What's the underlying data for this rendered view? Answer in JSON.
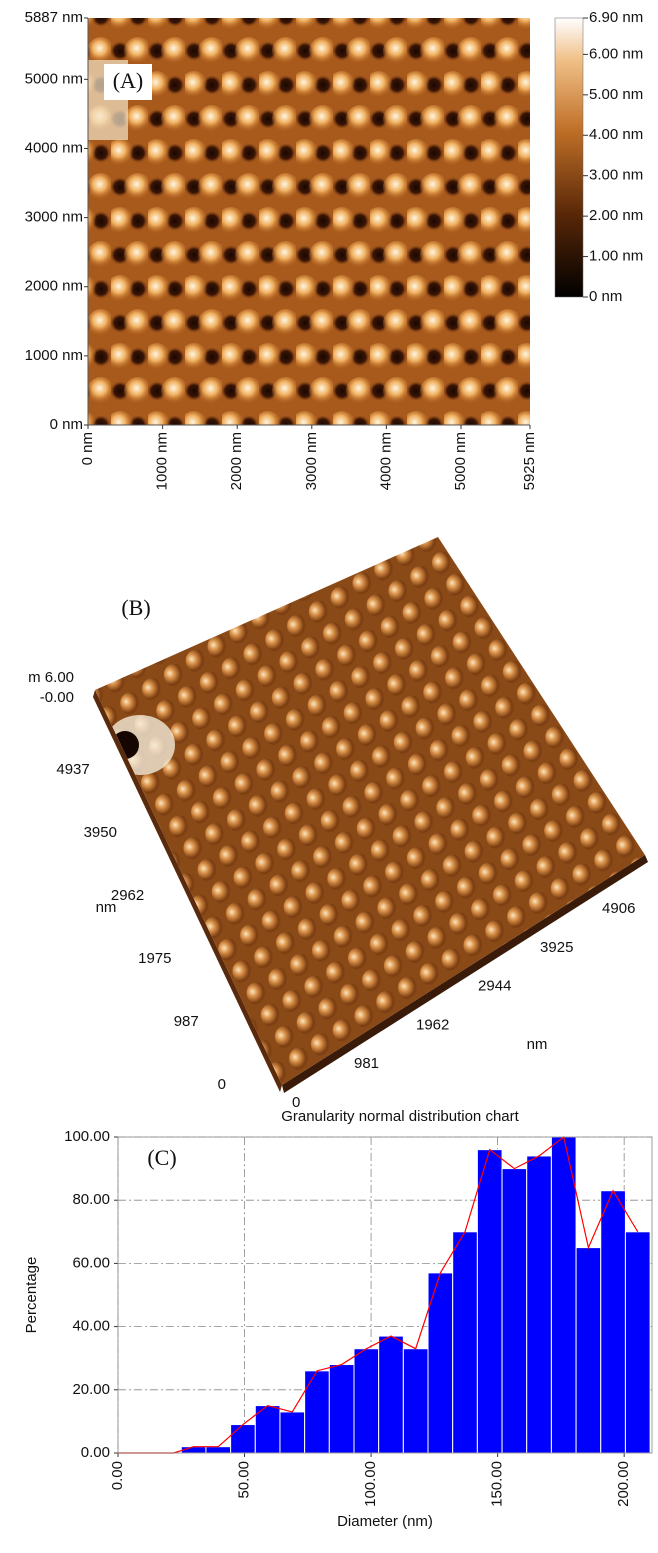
{
  "chart_data": [
    {
      "type": "image",
      "annotation": "(A)",
      "xlim": [
        0,
        5925
      ],
      "ylim": [
        0,
        5887
      ],
      "xticks": [
        {
          "value": 0,
          "label": "0 nm"
        },
        {
          "value": 1000,
          "label": "1000 nm"
        },
        {
          "value": 2000,
          "label": "2000 nm"
        },
        {
          "value": 3000,
          "label": "3000 nm"
        },
        {
          "value": 4000,
          "label": "4000 nm"
        },
        {
          "value": 5000,
          "label": "5000 nm"
        },
        {
          "value": 5925,
          "label": "5925 nm"
        }
      ],
      "yticks": [
        {
          "value": 0,
          "label": "0 nm"
        },
        {
          "value": 1000,
          "label": "1000 nm"
        },
        {
          "value": 2000,
          "label": "2000 nm"
        },
        {
          "value": 3000,
          "label": "3000 nm"
        },
        {
          "value": 4000,
          "label": "4000 nm"
        },
        {
          "value": 5000,
          "label": "5000 nm"
        },
        {
          "value": 5887,
          "label": "5887 nm"
        }
      ],
      "colorbar": {
        "lim": [
          0,
          6.9
        ],
        "ticks": [
          {
            "value": 0,
            "label": "0 nm"
          },
          {
            "value": 1,
            "label": "1.00 nm"
          },
          {
            "value": 2,
            "label": "2.00 nm"
          },
          {
            "value": 3,
            "label": "3.00 nm"
          },
          {
            "value": 4,
            "label": "4.00 nm"
          },
          {
            "value": 5,
            "label": "5.00 nm"
          },
          {
            "value": 6,
            "label": "6.00 nm"
          },
          {
            "value": 6.9,
            "label": "6.90 nm"
          }
        ]
      }
    },
    {
      "type": "surface3d",
      "annotation": "(B)",
      "z_top": "m 6.00",
      "z_bottom": "-0.00",
      "yticks": [
        0,
        987,
        1975,
        2962,
        3950,
        4937
      ],
      "y_unit": "nm",
      "xticks": [
        0,
        981,
        1962,
        2944,
        3925,
        4906
      ],
      "x_unit": "nm"
    },
    {
      "type": "histogram",
      "title": "Granularity normal distribution chart",
      "annotation": "(C)",
      "xlabel": "Diameter (nm)",
      "ylabel": "Percentage",
      "color": "#0000ff",
      "grid": true,
      "bins": [
        25,
        34.75,
        44.5,
        54.25,
        64,
        73.75,
        83.5,
        93.25,
        103,
        112.75,
        122.5,
        132.25,
        142,
        151.75,
        161.5,
        171.25,
        181,
        190.75,
        200.5,
        210.25
      ],
      "values": [
        2,
        2,
        9,
        15,
        13,
        26,
        28,
        33,
        37,
        33,
        57,
        70,
        96,
        90,
        94,
        100,
        65,
        83,
        70
      ],
      "polygon": {
        "color": "#ff0000",
        "x": [
          0,
          22,
          29.875,
          39.625,
          49.375,
          59.125,
          68.875,
          78.625,
          88.375,
          98.125,
          107.875,
          117.625,
          127.375,
          137.125,
          146.875,
          156.625,
          166.375,
          176.125,
          185.875,
          195.625,
          205.375
        ],
        "values": [
          0,
          0,
          2,
          2,
          9,
          15,
          13,
          26,
          28,
          33,
          37,
          33,
          57,
          70,
          96,
          90,
          94,
          100,
          65,
          83,
          70
        ]
      },
      "xlim": [
        0,
        211
      ],
      "ylim": [
        0,
        100
      ],
      "xticks": [
        {
          "value": 0,
          "label": "0.00"
        },
        {
          "value": 50,
          "label": "50.00"
        },
        {
          "value": 100,
          "label": "100.00"
        },
        {
          "value": 150,
          "label": "150.00"
        },
        {
          "value": 200,
          "label": "200.00"
        }
      ],
      "yticks": [
        {
          "value": 0,
          "label": "0.00"
        },
        {
          "value": 20,
          "label": "20.00"
        },
        {
          "value": 40,
          "label": "40.00"
        },
        {
          "value": 60,
          "label": "60.00"
        },
        {
          "value": 80,
          "label": "80.00"
        },
        {
          "value": 100,
          "label": "100.00"
        }
      ]
    }
  ]
}
